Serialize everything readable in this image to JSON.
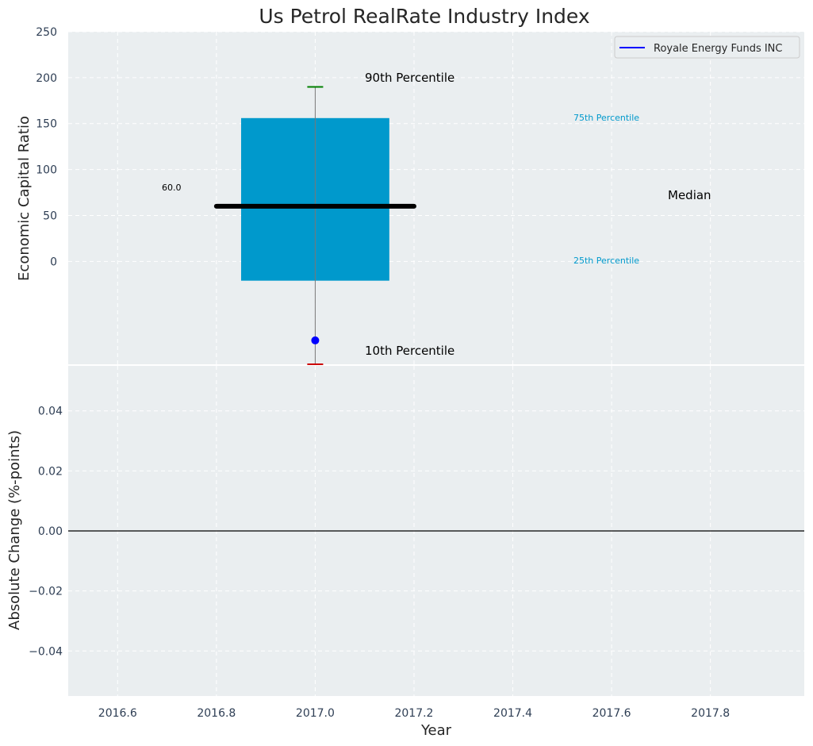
{
  "chart_data": [
    {
      "type": "box",
      "title": "Us Petrol RealRate Industry Index",
      "ylabel": "Economic Capital Ratio",
      "yticks": [
        0,
        50,
        100,
        150,
        200,
        250
      ],
      "ylim": [
        -112,
        250
      ],
      "xlim": [
        2016.5,
        2017.99
      ],
      "grid": true,
      "legend": {
        "position": "top-right",
        "entries": [
          {
            "label": "Royale Energy Funds INC",
            "color": "#0000ff"
          }
        ]
      },
      "box": {
        "x": 2017.0,
        "x_left": 2016.85,
        "x_right": 2017.15,
        "p10": -112,
        "p25": -21,
        "median": 60,
        "p75": 156,
        "p90": 190,
        "median_line_x": [
          2016.8,
          2017.2
        ],
        "color": "#0099cc"
      },
      "company_point": {
        "x": 2017.0,
        "y": -86,
        "color": "#0000ff"
      },
      "annotations": {
        "p90": "90th Percentile",
        "p75": "75th Percentile",
        "median": "Median",
        "p25": "25th Percentile",
        "p10": "10th Percentile",
        "median_value": "60.0"
      }
    },
    {
      "type": "line",
      "ylabel": "Absolute Change (%-points)",
      "xlabel": "Year",
      "ylim": [
        -0.055,
        0.055
      ],
      "yticks": [
        -0.04,
        -0.02,
        0.0,
        0.02,
        0.04
      ],
      "ytick_labels": [
        "−0.04",
        "−0.02",
        "0.00",
        "0.02",
        "0.04"
      ],
      "xticks": [
        2016.6,
        2016.8,
        2017.0,
        2017.2,
        2017.4,
        2017.6,
        2017.8
      ],
      "xtick_labels": [
        "2016.6",
        "2016.8",
        "2017.0",
        "2017.2",
        "2017.4",
        "2017.6",
        "2017.8"
      ],
      "xlim": [
        2016.5,
        2017.99
      ],
      "zero_line": 0,
      "grid": true
    }
  ]
}
